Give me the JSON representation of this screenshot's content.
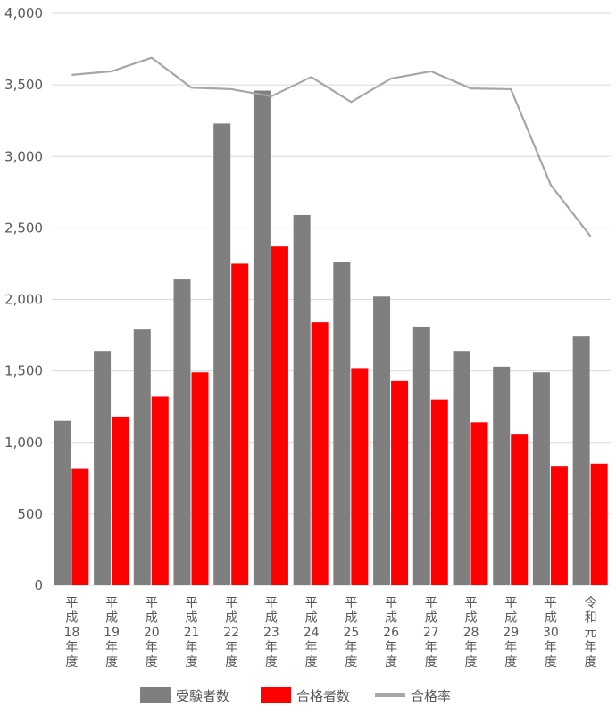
{
  "chart_data": {
    "type": "bar",
    "categories": [
      "平成18年度",
      "平成19年度",
      "平成20年度",
      "平成21年度",
      "平成22年度",
      "平成23年度",
      "平成24年度",
      "平成25年度",
      "平成26年度",
      "平成27年度",
      "平成28年度",
      "平成29年度",
      "平成30年度",
      "令和元年度"
    ],
    "series": [
      {
        "name": "受験者数",
        "kind": "bar",
        "color": "#7f7f7f",
        "values": [
          1150,
          1640,
          1790,
          2140,
          3230,
          3460,
          2590,
          2260,
          2020,
          1810,
          1640,
          1530,
          1490,
          1740
        ]
      },
      {
        "name": "合格者数",
        "kind": "bar",
        "color": "#ff0000",
        "values": [
          820,
          1180,
          1320,
          1490,
          2250,
          2370,
          1840,
          1520,
          1430,
          1300,
          1140,
          1060,
          835,
          850
        ]
      },
      {
        "name": "合格率",
        "kind": "line",
        "color": "#a6a6a6",
        "values": [
          3570,
          3595,
          3690,
          3480,
          3470,
          3420,
          3555,
          3380,
          3545,
          3595,
          3475,
          3470,
          2800,
          2440
        ]
      }
    ],
    "title": "",
    "xlabel": "",
    "ylabel": "",
    "ylim": [
      0,
      4000
    ],
    "yticks": [
      0,
      500,
      1000,
      1500,
      2000,
      2500,
      3000,
      3500,
      4000
    ],
    "ytick_labels": [
      "0",
      "500",
      "1,000",
      "1,500",
      "2,000",
      "2,500",
      "3,000",
      "3,500",
      "4,000"
    ],
    "grid": true,
    "legend_position": "bottom"
  },
  "colors": {
    "grid": "#d9d9d9",
    "axis_text": "#595959"
  }
}
